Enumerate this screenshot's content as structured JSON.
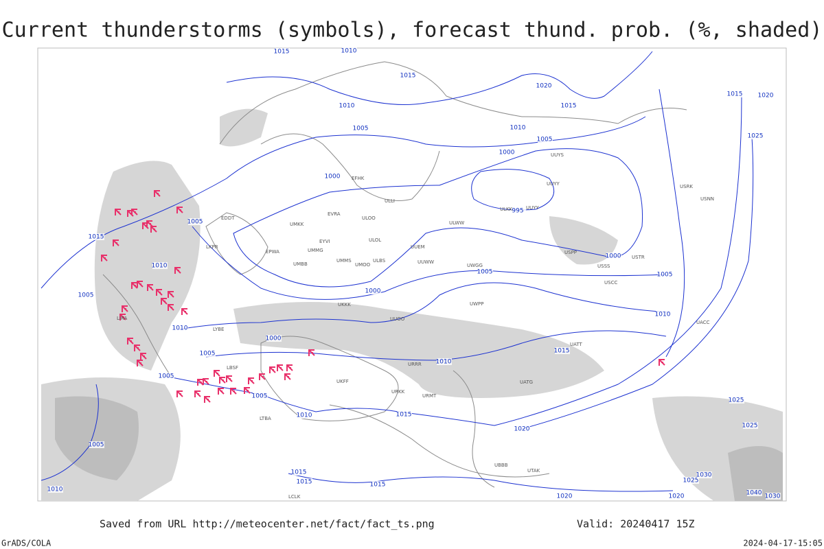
{
  "header": {
    "title": "Current thunderstorms (symbols), forecast thund. prob. (%, shaded)"
  },
  "footer": {
    "saved": "Saved from URL http://meteocenter.net/fact/fact_ts.png",
    "valid": "Valid: 20240417 15Z",
    "software": "GrADS/COLA",
    "timestamp": "2024-04-17-15:05"
  },
  "isobar_labels": [
    "1015",
    "1010",
    "1015",
    "1020",
    "1015",
    "1010",
    "1005",
    "1010",
    "1005",
    "1000",
    "1000",
    "995",
    "1005",
    "1015",
    "1010",
    "1000",
    "1005",
    "1000",
    "1005",
    "1010",
    "1005",
    "1010",
    "1000",
    "1005",
    "1015",
    "1010",
    "1005",
    "1005",
    "1010",
    "1015",
    "1020",
    "1025",
    "1025",
    "1005",
    "1015",
    "1015",
    "1015",
    "1010",
    "1020",
    "1020",
    "1025",
    "1030",
    "1040",
    "1030",
    "1015",
    "1020",
    "1025"
  ],
  "stations": [
    "EFHK",
    "ULLI",
    "EVRA",
    "ULOO",
    "UMKK",
    "EDDT",
    "EYVI",
    "ULOL",
    "UMMG",
    "EPWA",
    "UMMS",
    "UMOO",
    "ULBS",
    "UMBB",
    "UUEM",
    "UUWW",
    "UWGG",
    "ULWW",
    "UUYY",
    "ULKK",
    "UUYY",
    "UUYS",
    "USSS",
    "USCC",
    "USTR",
    "USPP",
    "USRK",
    "USNN",
    "UKKK",
    "UUOO",
    "UWPP",
    "URRR",
    "UATG",
    "UATT",
    "UACC",
    "LIRA",
    "LKPR",
    "LYBE",
    "LBSF",
    "UKFF",
    "URKK",
    "URMT",
    "UBBB",
    "UTAK",
    "LTBA",
    "LCLK"
  ]
}
